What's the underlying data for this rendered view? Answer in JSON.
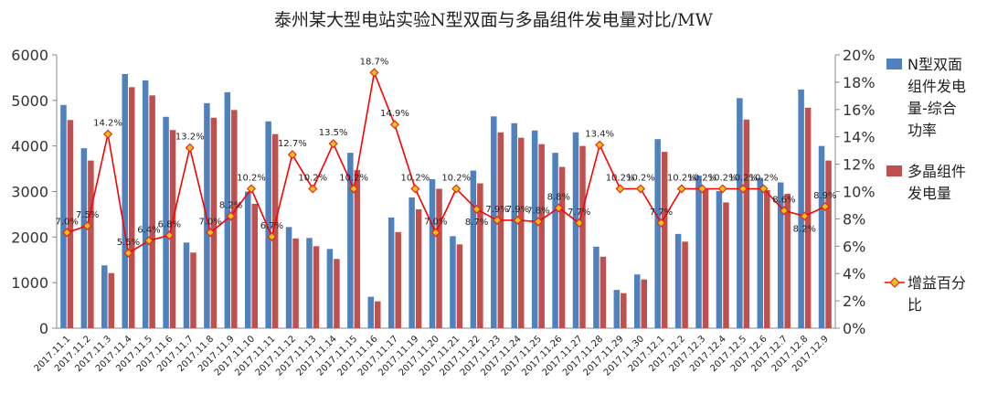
{
  "chart_data": {
    "type": "bar",
    "title": "泰州某大型电站实验N型双面与多晶组件发电量对比/MW",
    "categories": [
      "2017.11.1",
      "2017.11.2",
      "2017.11.3",
      "2017.11.4",
      "2017.11.5",
      "2017.11.6",
      "2017.11.7",
      "2017.11.8",
      "2017.11.9",
      "2017.11.10",
      "2017.11.11",
      "2017.11.12",
      "2017.11.13",
      "2017.11.14",
      "2017.11.15",
      "2017.11.16",
      "2017.11.17",
      "2017.11.19",
      "2017.11.20",
      "2017.11.21",
      "2017.11.22",
      "2017.11.23",
      "2017.11.24",
      "2017.11.25",
      "2017.11.26",
      "2017.11.27",
      "2017.11.28",
      "2017.11.29",
      "2017.11.30",
      "2017.12.1",
      "2017.12.2",
      "2017.12.3",
      "2017.12.4",
      "2017.12.5",
      "2017.12.6",
      "2017.12.7",
      "2017.12.8",
      "2017.12.9"
    ],
    "series": [
      {
        "name": "N型双面组件发电量-综合功率",
        "type": "bar",
        "axis": "left",
        "color": "#4f81bd",
        "values": [
          4900,
          3950,
          1380,
          5580,
          5440,
          4640,
          1880,
          4940,
          5180,
          3000,
          4540,
          2220,
          1980,
          1740,
          3850,
          690,
          2430,
          2870,
          3270,
          2020,
          3460,
          4650,
          4500,
          4340,
          3850,
          4300,
          1790,
          840,
          1180,
          4150,
          2070,
          3350,
          3010,
          5050,
          3300,
          3200,
          5240,
          4000
        ]
      },
      {
        "name": "多晶组件发电量",
        "type": "bar",
        "axis": "left",
        "color": "#c0504d",
        "values": [
          4570,
          3680,
          1210,
          5290,
          5110,
          4350,
          1660,
          4620,
          4790,
          2730,
          4260,
          1970,
          1800,
          1520,
          3470,
          590,
          2110,
          2610,
          3060,
          1840,
          3180,
          4300,
          4180,
          4040,
          3540,
          4000,
          1570,
          770,
          1070,
          3870,
          1900,
          3070,
          2760,
          4580,
          3030,
          2950,
          4840,
          3680
        ]
      },
      {
        "name": "增益百分比",
        "type": "line",
        "axis": "right",
        "color": "#ff0000",
        "values": [
          7.0,
          7.5,
          14.2,
          5.5,
          6.4,
          6.8,
          13.2,
          7.0,
          8.2,
          10.2,
          6.7,
          12.7,
          10.2,
          13.5,
          10.2,
          18.7,
          14.9,
          10.2,
          7.0,
          10.2,
          8.7,
          7.9,
          7.9,
          7.8,
          8.8,
          7.7,
          13.4,
          10.2,
          10.2,
          7.7,
          10.2,
          10.2,
          10.2,
          10.2,
          10.2,
          8.6,
          8.2,
          8.9
        ],
        "labels": [
          "7.0%",
          "7.5%",
          "14.2%",
          "5.5%",
          "6.4%",
          "6.8%",
          "13.2%",
          "7.0%",
          "8.2%",
          "10.2%",
          "6.7%",
          "12.7%",
          "10.2%",
          "13.5%",
          "10.2%",
          "18.7%",
          "14.9%",
          "10.2%",
          "7.0%",
          "10.2%",
          "8.7%",
          "7.9%",
          "7.9%",
          "7.8%",
          "8.8%",
          "7.7%",
          "13.4%",
          "10.2%",
          "10.2%",
          "7.7%",
          "10.2%",
          "10.2%",
          "10.2%",
          "10.2%",
          "10.2%",
          "8.6%",
          "8.2%",
          "8.9%"
        ]
      }
    ],
    "y_left": {
      "min": 0,
      "max": 6000,
      "ticks": [
        "0",
        "1000",
        "2000",
        "3000",
        "4000",
        "5000",
        "6000"
      ]
    },
    "y_right": {
      "min": 0,
      "max": 20,
      "ticks": [
        "0%",
        "2%",
        "4%",
        "6%",
        "8%",
        "10%",
        "12%",
        "14%",
        "16%",
        "18%",
        "20%"
      ]
    },
    "grid": false,
    "legend_position": "right",
    "legend": [
      {
        "series": 0,
        "lines": [
          "N型双面",
          "组件发电",
          "量-综合",
          "功率"
        ]
      },
      {
        "series": 1,
        "lines": [
          "多晶组件",
          "发电量"
        ]
      },
      {
        "series": 2,
        "lines": [
          "增益百分",
          "比"
        ]
      }
    ]
  }
}
